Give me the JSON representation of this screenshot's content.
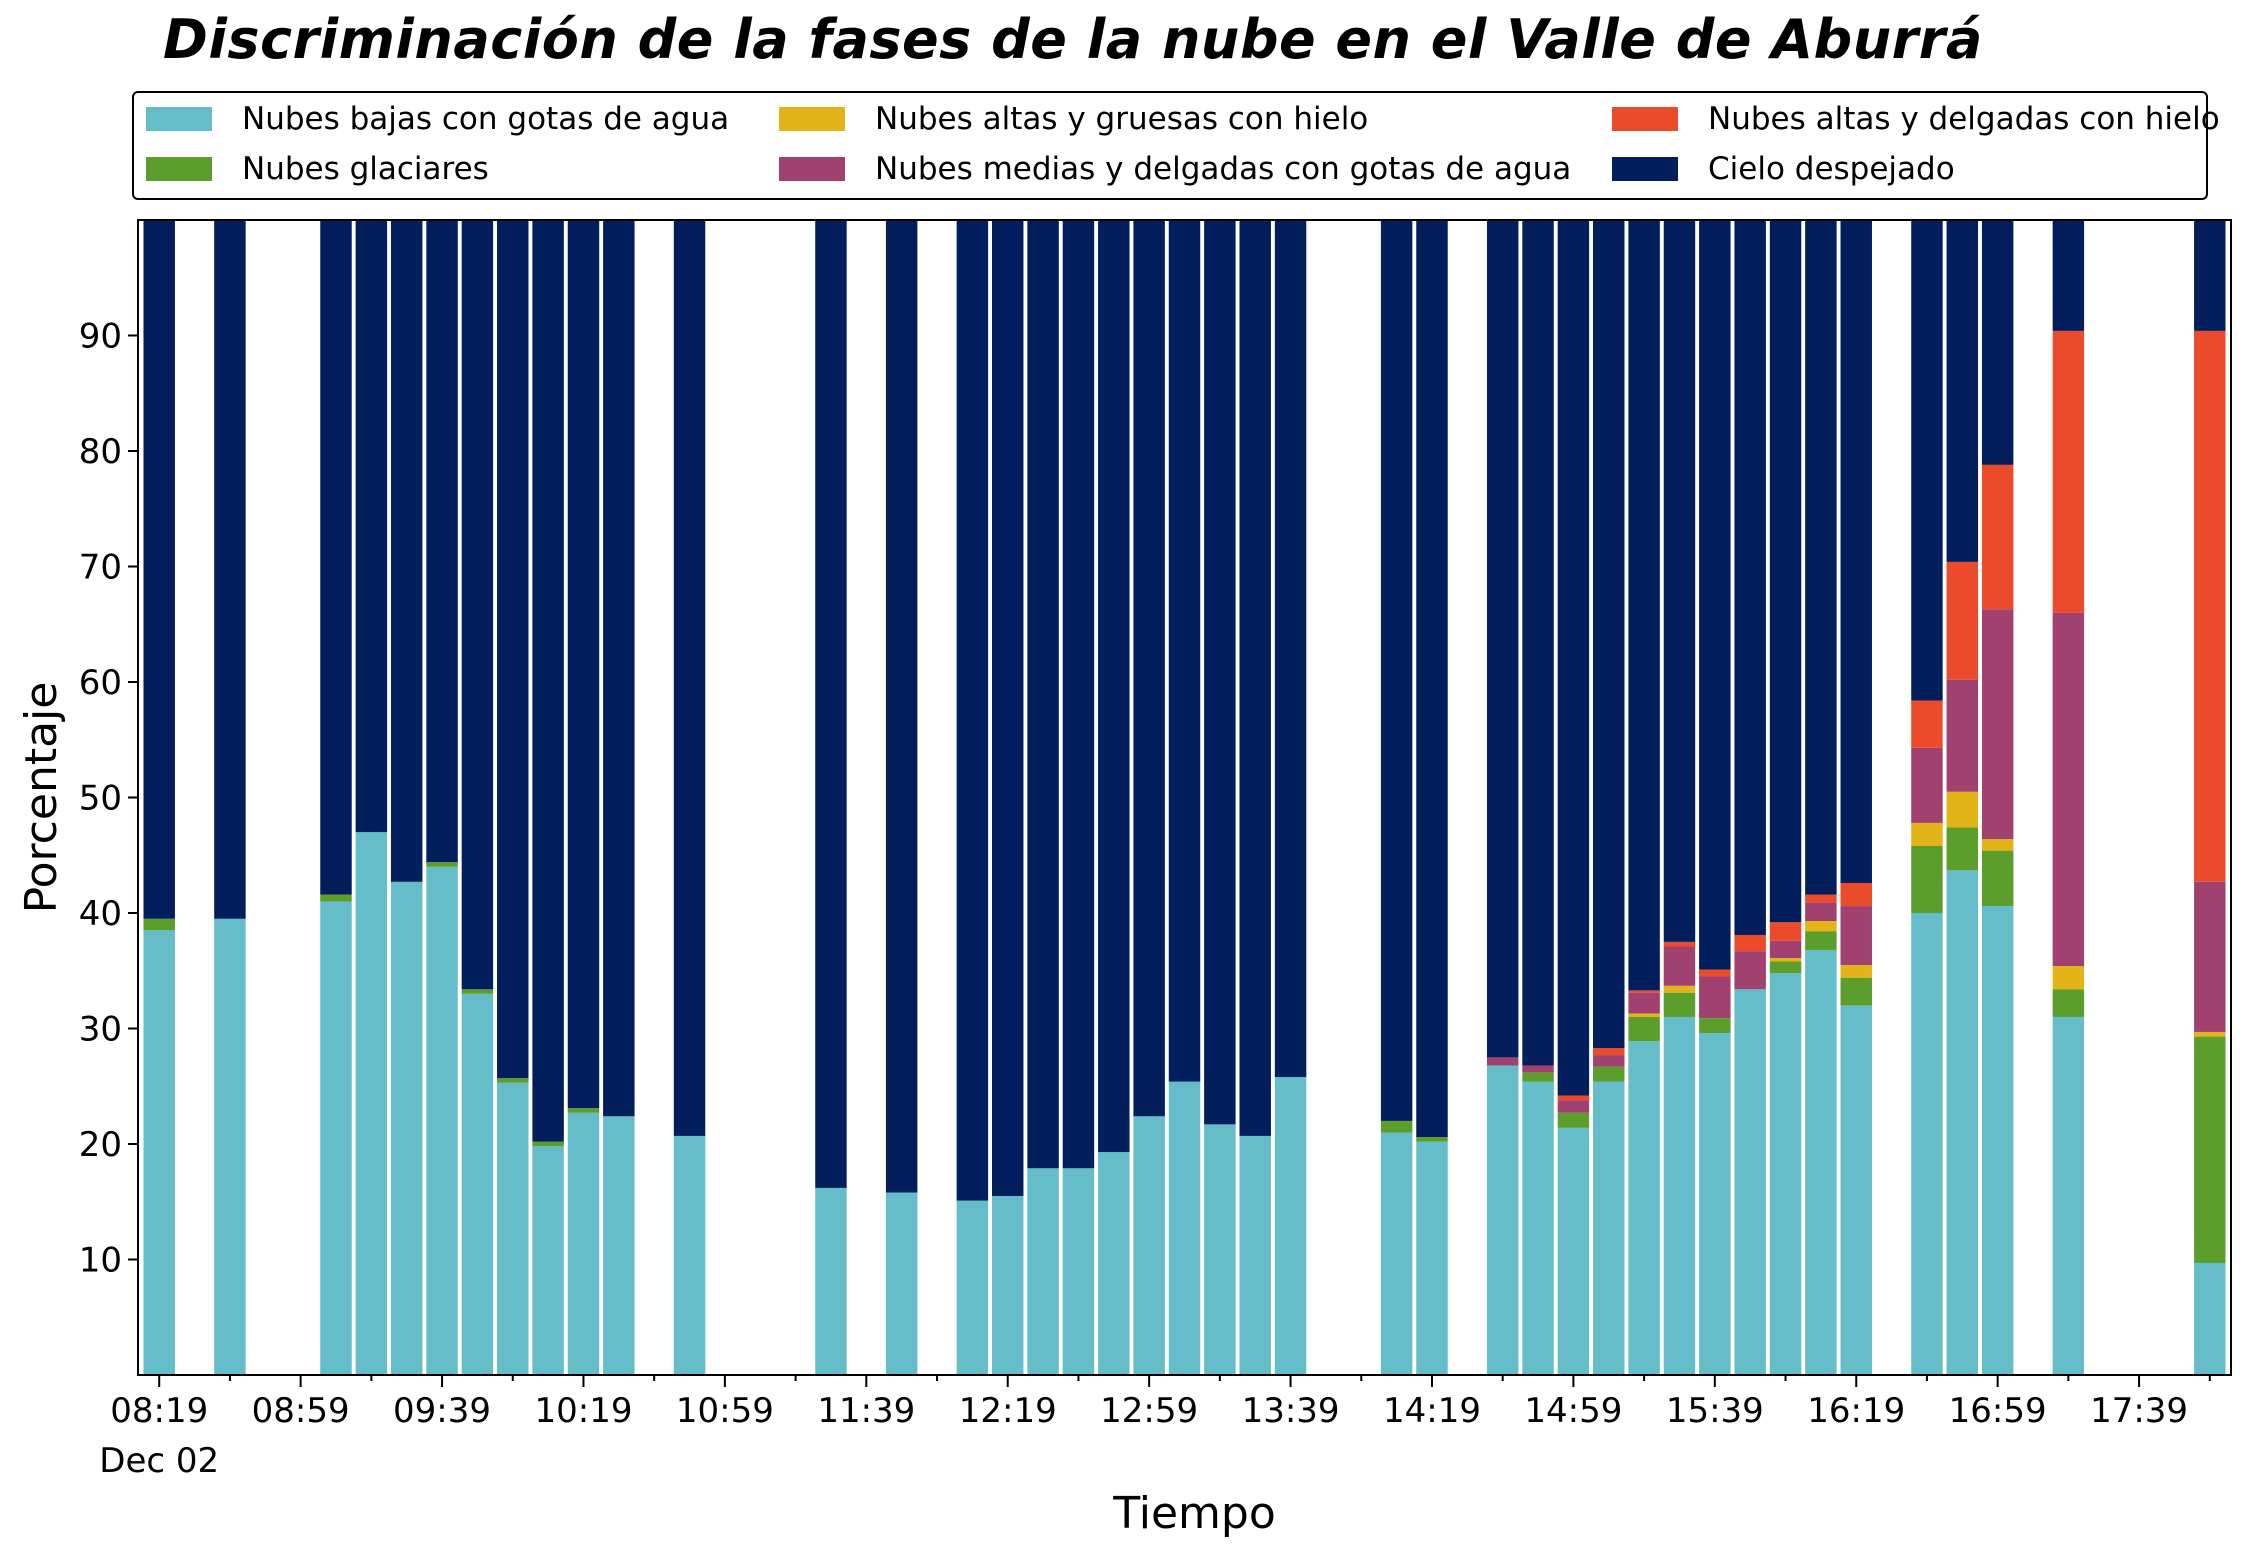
{
  "chart_data": {
    "type": "bar",
    "stacked": true,
    "title": "Discriminación de la fases de la nube en el Valle de Aburrá",
    "xlabel": "Tiempo",
    "ylabel": "Porcentaje",
    "ylim": [
      0,
      100
    ],
    "y_ticks": [
      10,
      20,
      30,
      40,
      50,
      60,
      70,
      80,
      90
    ],
    "x_date_label": "Dec 02",
    "x_ticks": [
      "08:19",
      "08:59",
      "09:39",
      "10:19",
      "10:59",
      "11:39",
      "12:19",
      "12:59",
      "13:39",
      "14:19",
      "14:59",
      "15:39",
      "16:19",
      "16:59",
      "17:39"
    ],
    "x_tick_minutes": [
      499,
      539,
      579,
      619,
      659,
      699,
      739,
      779,
      819,
      859,
      899,
      939,
      979,
      1019,
      1059
    ],
    "x_range_minutes": [
      493,
      1085
    ],
    "bar_width_minutes": 8.9,
    "legend_position": "top",
    "grid": false,
    "x_minutes": [
      499,
      519,
      549,
      559,
      569,
      579,
      589,
      599,
      609,
      619,
      629,
      649,
      689,
      709,
      729,
      739,
      749,
      759,
      769,
      779,
      789,
      799,
      809,
      819,
      849,
      859,
      879,
      889,
      899,
      909,
      919,
      929,
      939,
      949,
      959,
      969,
      979,
      999,
      1009,
      1019,
      1039,
      1079
    ],
    "series": [
      {
        "name": "Nubes bajas con gotas de agua",
        "color": "#64BDC9",
        "values": [
          38.5,
          39.5,
          41,
          47,
          42.7,
          44,
          33,
          25.3,
          19.8,
          22.7,
          22.4,
          20.7,
          16.2,
          15.8,
          15.1,
          15.5,
          17.9,
          17.9,
          19.3,
          22.4,
          25.4,
          21.7,
          20.7,
          25.8,
          21,
          20.2,
          26.8,
          25.4,
          21.4,
          25.4,
          28.9,
          31,
          29.6,
          33.4,
          34.8,
          36.8,
          32,
          40,
          43.7,
          40.6,
          31,
          9.7
        ]
      },
      {
        "name": "Nubes glaciares",
        "color": "#5B9E2C",
        "values": [
          1,
          0,
          0.6,
          0,
          0,
          0.4,
          0.4,
          0.4,
          0.4,
          0.4,
          0,
          0,
          0,
          0,
          0,
          0,
          0,
          0,
          0,
          0,
          0,
          0,
          0,
          0,
          1,
          0.4,
          0,
          0.8,
          1.3,
          1.3,
          2.1,
          2.1,
          1.3,
          0,
          1,
          1.6,
          2.4,
          5.8,
          3.7,
          4.8,
          2.4,
          19.6
        ]
      },
      {
        "name": "Nubes altas y gruesas con hielo",
        "color": "#E2B417",
        "values": [
          0,
          0,
          0,
          0,
          0,
          0,
          0,
          0,
          0,
          0,
          0,
          0,
          0,
          0,
          0,
          0,
          0,
          0,
          0,
          0,
          0,
          0,
          0,
          0,
          0,
          0,
          0,
          0,
          0,
          0,
          0.3,
          0.6,
          0,
          0,
          0.3,
          0.9,
          1.1,
          2,
          3.1,
          1,
          2,
          0.4
        ]
      },
      {
        "name": "Nubes medias y delgadas con gotas de agua",
        "color": "#A0416F",
        "values": [
          0,
          0,
          0,
          0,
          0,
          0,
          0,
          0,
          0,
          0,
          0,
          0,
          0,
          0,
          0,
          0,
          0,
          0,
          0,
          0,
          0,
          0,
          0,
          0,
          0,
          0,
          0.7,
          0.6,
          1.1,
          1,
          1.8,
          3.4,
          3.6,
          3.3,
          1.5,
          1.6,
          5.1,
          6.5,
          9.7,
          19.9,
          30.6,
          13
        ]
      },
      {
        "name": "Nubes altas y delgadas con hielo",
        "color": "#EB4B2A",
        "values": [
          0,
          0,
          0,
          0,
          0,
          0,
          0,
          0,
          0,
          0,
          0,
          0,
          0,
          0,
          0,
          0,
          0,
          0,
          0,
          0,
          0,
          0,
          0,
          0,
          0,
          0,
          0,
          0,
          0.4,
          0.6,
          0.2,
          0.4,
          0.6,
          1.4,
          1.6,
          0.7,
          2,
          4.1,
          10.2,
          12.5,
          24.4,
          47.7
        ]
      },
      {
        "name": "Cielo despejado",
        "color": "#031E5C",
        "values": [
          60.5,
          60.5,
          58.4,
          53,
          57.3,
          55.6,
          66.6,
          74.3,
          79.8,
          76.9,
          77.6,
          79.3,
          83.8,
          84.2,
          84.9,
          84.5,
          82.1,
          82.1,
          80.7,
          77.6,
          74.6,
          78.3,
          79.3,
          74.2,
          78,
          79.4,
          72.5,
          73.2,
          75.8,
          71.7,
          66.7,
          62.5,
          64.9,
          61.9,
          60.8,
          58.4,
          57.4,
          41.6,
          29.6,
          21.2,
          9.6,
          9.6
        ]
      }
    ]
  }
}
